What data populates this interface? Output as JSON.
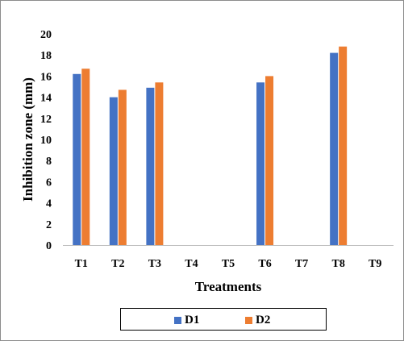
{
  "chart_data": {
    "type": "bar",
    "categories": [
      "T1",
      "T2",
      "T3",
      "T4",
      "T5",
      "T6",
      "T7",
      "T8",
      "T9"
    ],
    "series": [
      {
        "name": "D1",
        "values": [
          16.2,
          14.0,
          14.9,
          0,
          0,
          15.4,
          0,
          18.2,
          0
        ],
        "color": "#4472c4"
      },
      {
        "name": "D2",
        "values": [
          16.7,
          14.7,
          15.4,
          0,
          0,
          16.0,
          0,
          18.8,
          0
        ],
        "color": "#ed7d31"
      }
    ],
    "yticks": [
      "0",
      "2",
      "4",
      "6",
      "8",
      "10",
      "12",
      "14",
      "16",
      "18",
      "20"
    ],
    "ylim": [
      0,
      20
    ],
    "xlabel": "Treatments",
    "ylabel": "Inhibition zone (mm)",
    "grid": false,
    "legend_position": "bottom"
  }
}
